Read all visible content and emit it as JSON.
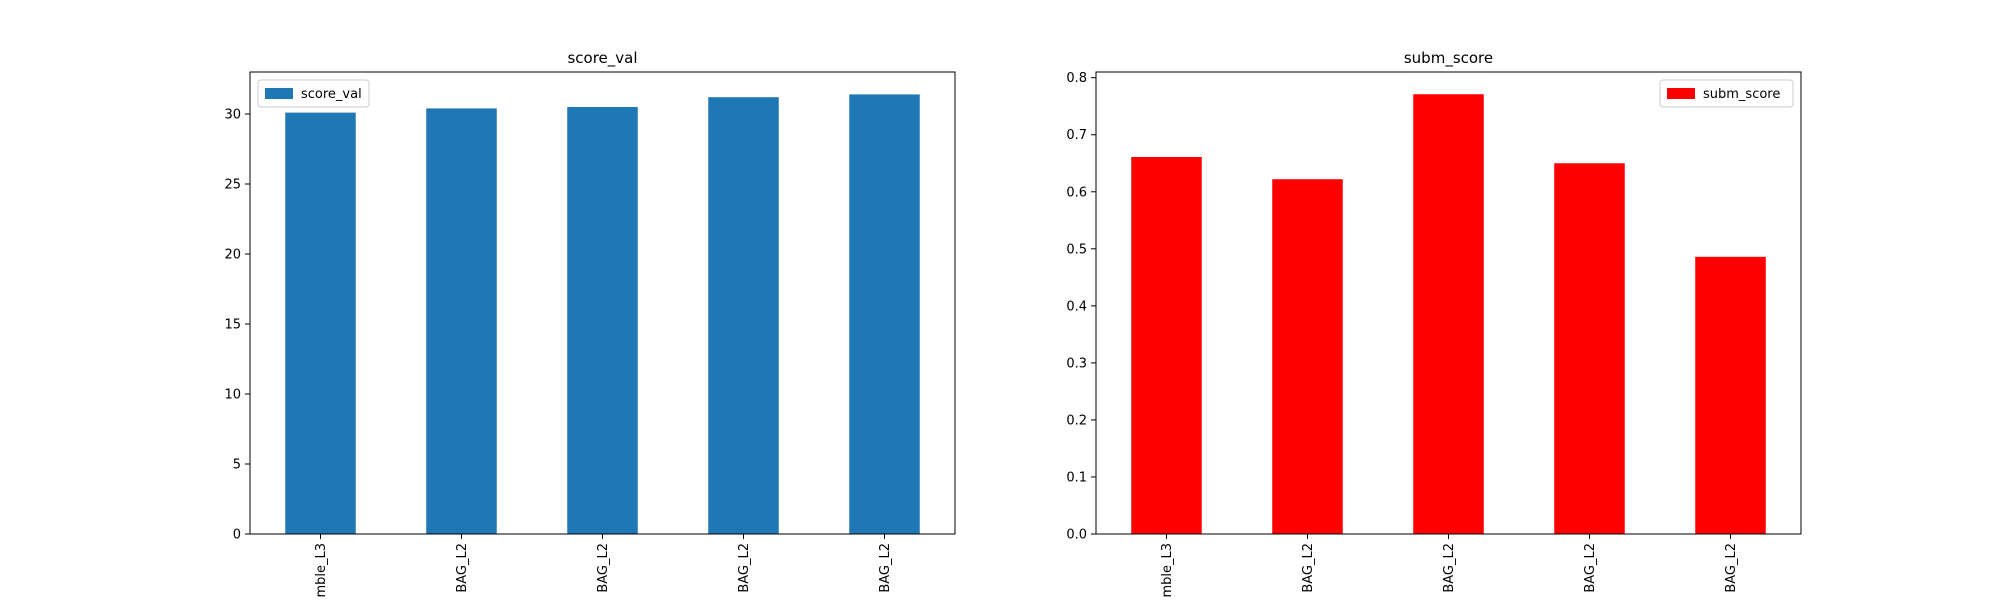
{
  "chart_data": [
    {
      "type": "bar",
      "title": "score_val",
      "xlabel": "",
      "ylabel": "",
      "categories": [
        "mble_L3",
        "BAG_L2",
        "BAG_L2",
        "BAG_L2",
        "BAG_L2"
      ],
      "series": [
        {
          "name": "score_val",
          "values": [
            30.1,
            30.4,
            30.5,
            31.2,
            31.4
          ],
          "color": "#1f77b4"
        }
      ],
      "ylim": [
        0,
        33
      ],
      "yticks": [
        "0",
        "5",
        "10",
        "15",
        "20",
        "25",
        "30"
      ],
      "legend": "upper left",
      "grid": false
    },
    {
      "type": "bar",
      "title": "subm_score",
      "xlabel": "",
      "ylabel": "",
      "categories": [
        "mble_L3",
        "BAG_L2",
        "BAG_L2",
        "BAG_L2",
        "BAG_L2"
      ],
      "series": [
        {
          "name": "subm_score",
          "values": [
            0.661,
            0.622,
            0.771,
            0.65,
            0.486
          ],
          "color": "#ff0000"
        }
      ],
      "ylim": [
        0,
        0.81
      ],
      "yticks": [
        "0.0",
        "0.1",
        "0.2",
        "0.3",
        "0.4",
        "0.5",
        "0.6",
        "0.7",
        "0.8"
      ],
      "legend": "upper right",
      "grid": false
    }
  ]
}
